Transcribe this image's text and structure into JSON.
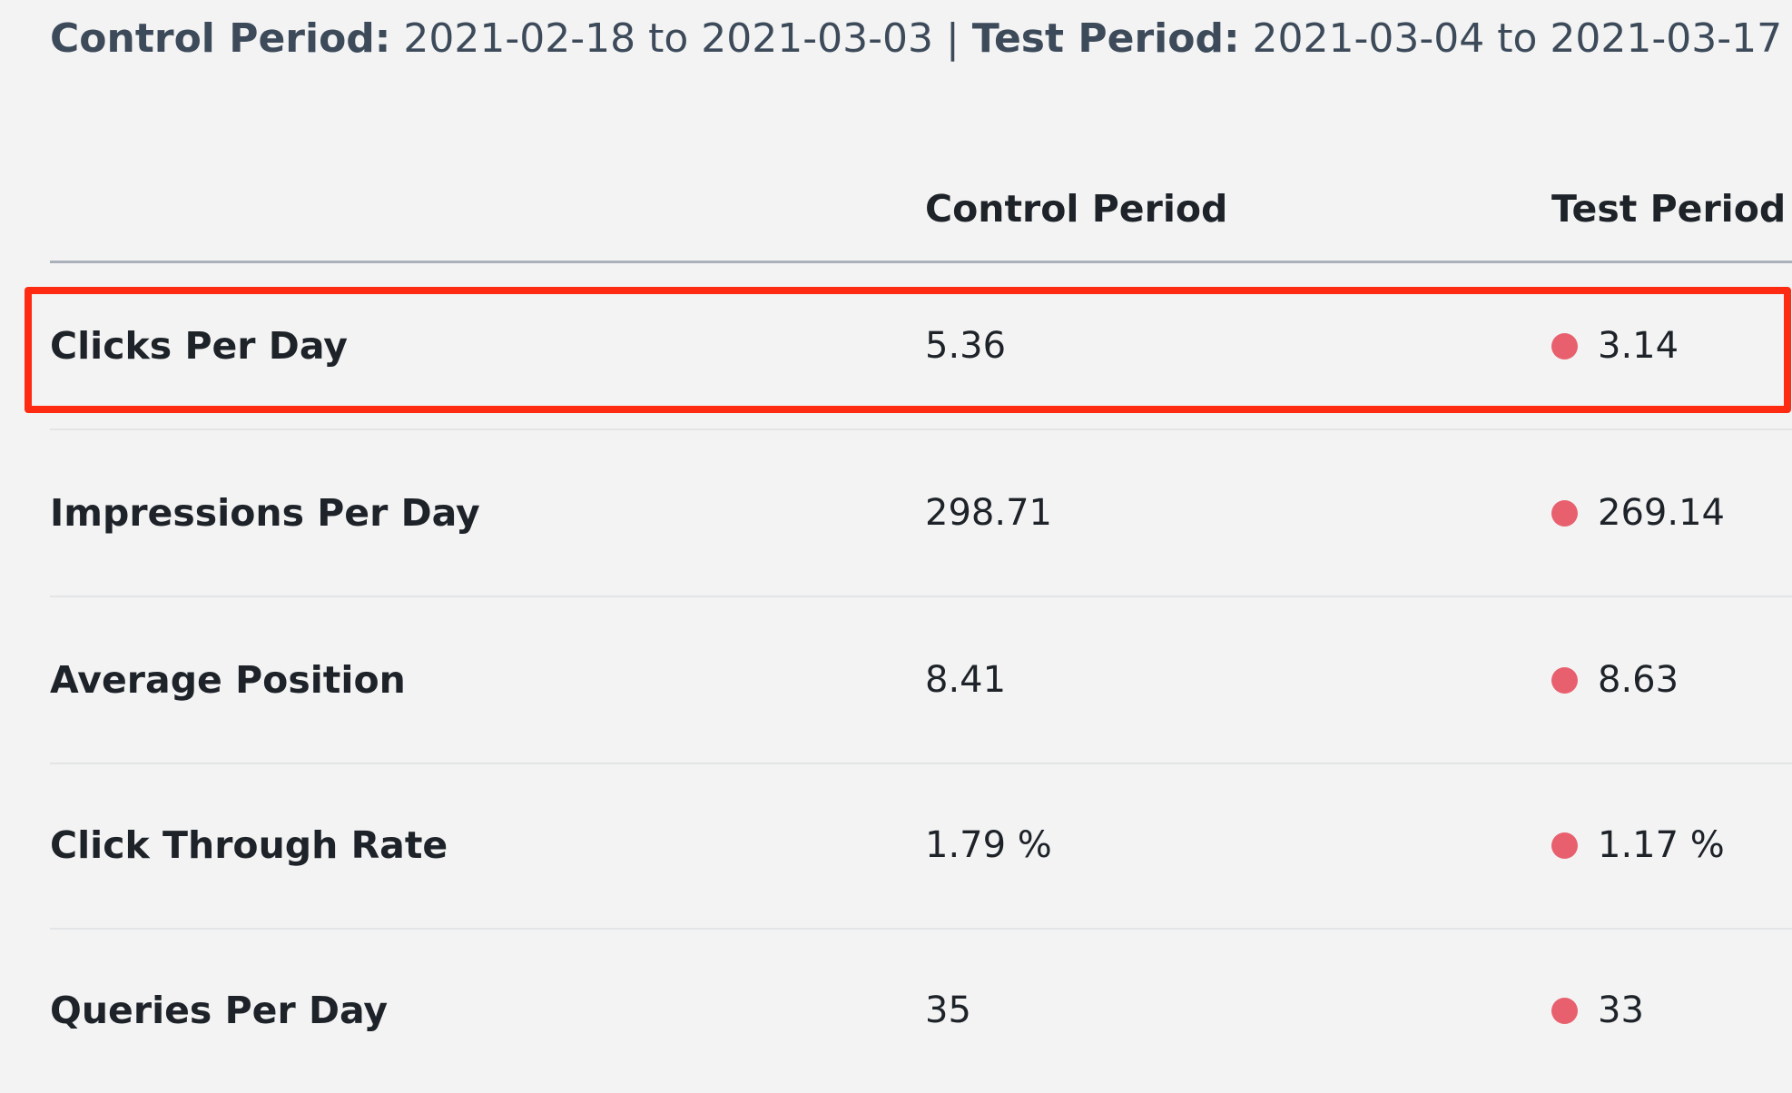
{
  "summary": {
    "control_label": "Control Period:",
    "control_range": "2021-02-18 to 2021-03-03",
    "separator": "|",
    "test_label": "Test Period:",
    "test_range": "2021-03-04 to 2021-03-17"
  },
  "table": {
    "columns": [
      "",
      "Control Period",
      "Test Period"
    ],
    "indicator_color": "#e8606e",
    "highlight_color": "#ff2a12",
    "rows": [
      {
        "metric": "Clicks Per Day",
        "control": "5.36",
        "test": "3.14"
      },
      {
        "metric": "Impressions Per Day",
        "control": "298.71",
        "test": "269.14"
      },
      {
        "metric": "Average Position",
        "control": "8.41",
        "test": "8.63"
      },
      {
        "metric": "Click Through Rate",
        "control": "1.79 %",
        "test": "1.17 %"
      },
      {
        "metric": "Queries Per Day",
        "control": "35",
        "test": "33"
      }
    ],
    "highlighted_row": "Clicks Per Day"
  }
}
